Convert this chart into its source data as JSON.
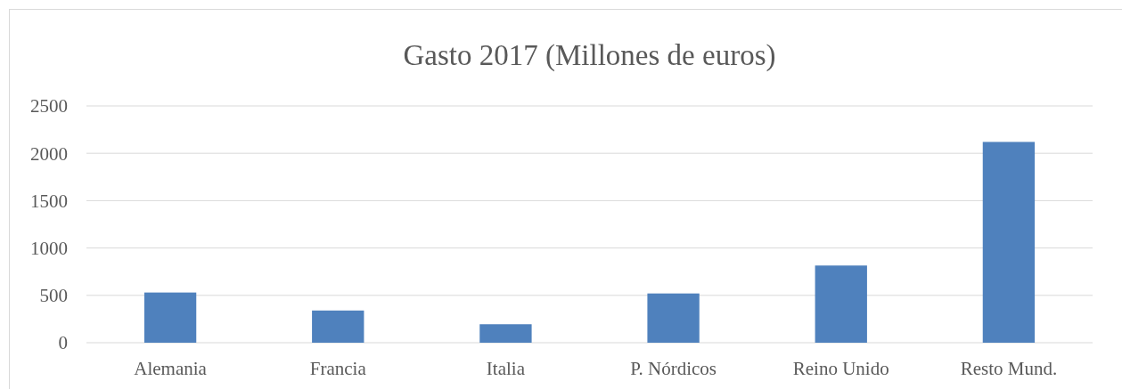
{
  "chart_data": {
    "type": "bar",
    "title": "Gasto 2017 (Millones de euros)",
    "categories": [
      "Alemania",
      "Francia",
      "Italia",
      "P. Nórdicos",
      "Reino Unido",
      "Resto Mund."
    ],
    "values": [
      530,
      340,
      195,
      520,
      815,
      2120
    ],
    "color": "#4f81bd",
    "ylim": [
      0,
      2500
    ],
    "yticks": [
      0,
      500,
      1000,
      1500,
      2000,
      2500
    ],
    "grid": "y"
  }
}
